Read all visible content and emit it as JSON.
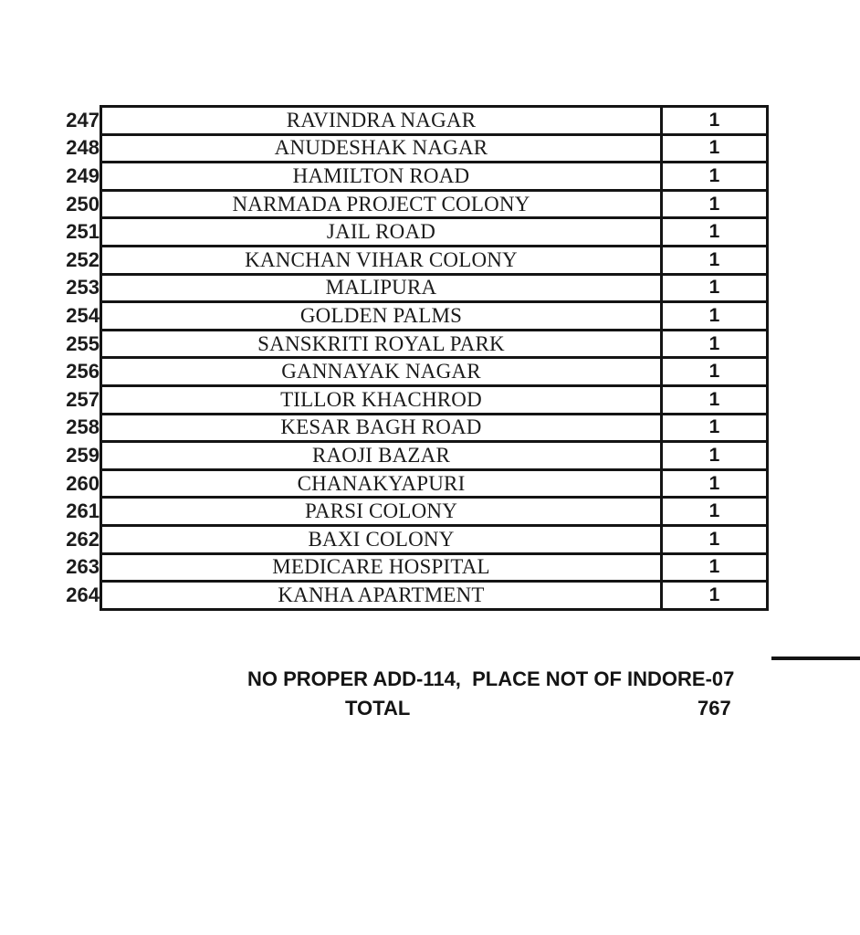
{
  "document": {
    "kind": "scanned-table-page",
    "text_color": "#141414",
    "border_color": "#141414",
    "background_color": "#ffffff"
  },
  "table": {
    "columns": [
      "serial_number",
      "locality_name",
      "count"
    ],
    "rows": [
      {
        "no": "247",
        "name": "RAVINDRA NAGAR",
        "count": "1"
      },
      {
        "no": "248",
        "name": "ANUDESHAK NAGAR",
        "count": "1"
      },
      {
        "no": "249",
        "name": "HAMILTON ROAD",
        "count": "1"
      },
      {
        "no": "250",
        "name": "NARMADA PROJECT COLONY",
        "count": "1"
      },
      {
        "no": "251",
        "name": "JAIL ROAD",
        "count": "1"
      },
      {
        "no": "252",
        "name": "KANCHAN VIHAR COLONY",
        "count": "1"
      },
      {
        "no": "253",
        "name": "MALIPURA",
        "count": "1"
      },
      {
        "no": "254",
        "name": "GOLDEN PALMS",
        "count": "1"
      },
      {
        "no": "255",
        "name": "SANSKRITI ROYAL PARK",
        "count": "1"
      },
      {
        "no": "256",
        "name": "GANNAYAK NAGAR",
        "count": "1"
      },
      {
        "no": "257",
        "name": "TILLOR KHACHROD",
        "count": "1"
      },
      {
        "no": "258",
        "name": "KESAR BAGH ROAD",
        "count": "1"
      },
      {
        "no": "259",
        "name": "RAOJI BAZAR",
        "count": "1"
      },
      {
        "no": "260",
        "name": "CHANAKYAPURI",
        "count": "1"
      },
      {
        "no": "261",
        "name": "PARSI COLONY",
        "count": "1"
      },
      {
        "no": "262",
        "name": "BAXI COLONY",
        "count": "1"
      },
      {
        "no": "263",
        "name": "MEDICARE HOSPITAL",
        "count": "1"
      },
      {
        "no": "264",
        "name": "KANHA APARTMENT",
        "count": "1"
      }
    ]
  },
  "footer": {
    "note": "NO PROPER ADD-114,  PLACE NOT OF INDORE-07",
    "total_label": "TOTAL",
    "total_value": "767"
  }
}
